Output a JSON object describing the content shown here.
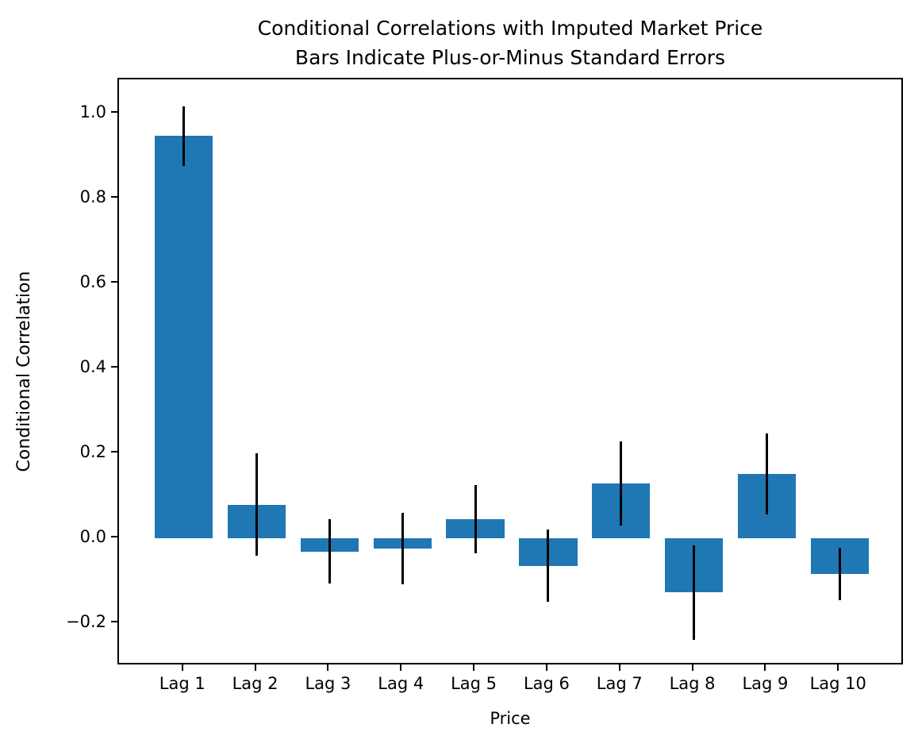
{
  "chart_data": {
    "type": "bar",
    "title": "Conditional Correlations with Imputed Market Price\nBars Indicate Plus-or-Minus Standard Errors",
    "title_line1": "Conditional Correlations with Imputed Market Price",
    "title_line2": "Bars Indicate Plus-or-Minus Standard Errors",
    "xlabel": "Price",
    "ylabel": "Conditional Correlation",
    "categories": [
      "Lag 1",
      "Lag 2",
      "Lag 3",
      "Lag 4",
      "Lag 5",
      "Lag 6",
      "Lag 7",
      "Lag 8",
      "Lag 9",
      "Lag 10"
    ],
    "values": [
      0.948,
      0.08,
      -0.03,
      -0.024,
      0.046,
      -0.064,
      0.13,
      -0.127,
      0.152,
      -0.083
    ],
    "errors": [
      0.07,
      0.12,
      0.076,
      0.084,
      0.08,
      0.085,
      0.099,
      0.111,
      0.095,
      0.062
    ],
    "error_style": "plus-or-minus standard errors, vertical black lines, no caps",
    "y_ticks": [
      {
        "value": 1.0,
        "label": "1.0"
      },
      {
        "value": 0.8,
        "label": "0.8"
      },
      {
        "value": 0.6,
        "label": "0.6"
      },
      {
        "value": 0.4,
        "label": "0.4"
      },
      {
        "value": 0.2,
        "label": "0.2"
      },
      {
        "value": 0.0,
        "label": "0.0"
      },
      {
        "value": -0.2,
        "label": "−0.2"
      }
    ],
    "ylim": [
      -0.3,
      1.081
    ],
    "xlim": [
      0.11,
      10.89
    ],
    "bar_width_units": 0.8,
    "grid": false,
    "legend_position": "none",
    "colors": {
      "bar": "#1f77b4",
      "error_bar": "#000000",
      "text": "#000000",
      "spine": "#000000",
      "background": "#ffffff"
    }
  }
}
